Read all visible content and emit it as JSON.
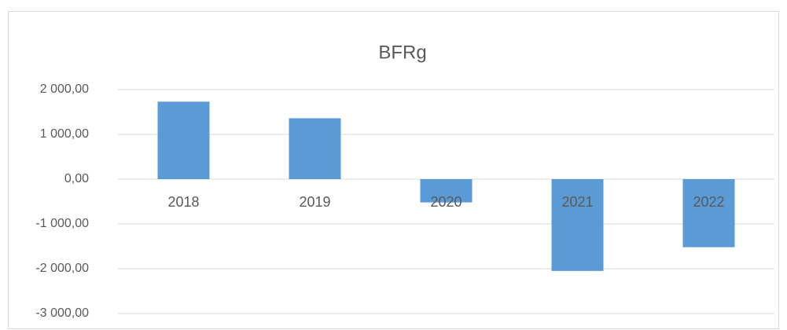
{
  "chart_data": {
    "type": "bar",
    "title": "BFRg",
    "categories": [
      "2018",
      "2019",
      "2020",
      "2021",
      "2022"
    ],
    "values": [
      1730,
      1360,
      -520,
      -2050,
      -1520
    ],
    "color": "#5b9bd5",
    "ylim": [
      -3000,
      2000
    ],
    "yticks": [
      {
        "value": -3000,
        "label": "-3 000,00"
      },
      {
        "value": -2000,
        "label": "-2 000,00"
      },
      {
        "value": -1000,
        "label": "-1 000,00"
      },
      {
        "value": 0,
        "label": "0,00"
      },
      {
        "value": 1000,
        "label": "1 000,00"
      },
      {
        "value": 2000,
        "label": "2 000,00"
      }
    ],
    "grid": true
  }
}
